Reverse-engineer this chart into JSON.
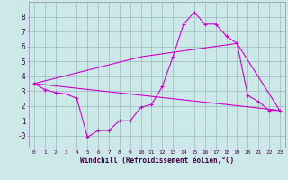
{
  "xlabel": "Windchill (Refroidissement éolien,°C)",
  "bg_color": "#cce8e8",
  "line_color": "#cc00cc",
  "grid_color": "#99bbbb",
  "spine_color": "#9999bb",
  "series1_x": [
    0,
    1,
    2,
    3,
    4,
    5,
    6,
    7,
    8,
    9,
    10,
    11,
    12,
    13,
    14,
    15,
    16,
    17,
    18,
    19,
    20,
    21,
    22,
    23
  ],
  "series1_y": [
    3.5,
    3.1,
    2.9,
    2.8,
    2.5,
    -0.1,
    0.35,
    0.35,
    1.0,
    1.0,
    1.9,
    2.1,
    3.3,
    5.3,
    7.5,
    8.3,
    7.5,
    7.5,
    6.7,
    6.2,
    2.7,
    2.3,
    1.7,
    1.7
  ],
  "line2_x": [
    0,
    23
  ],
  "line2_y": [
    3.5,
    1.7
  ],
  "line3_x": [
    0,
    10,
    19,
    23
  ],
  "line3_y": [
    3.5,
    5.3,
    6.2,
    1.7
  ],
  "ylim": [
    -0.8,
    9.0
  ],
  "xlim": [
    -0.5,
    23.5
  ],
  "yticks": [
    0,
    1,
    2,
    3,
    4,
    5,
    6,
    7,
    8
  ],
  "ytick_labels": [
    "-0",
    "1",
    "2",
    "3",
    "4",
    "5",
    "6",
    "7",
    "8"
  ],
  "xticks": [
    0,
    1,
    2,
    3,
    4,
    5,
    6,
    7,
    8,
    9,
    10,
    11,
    12,
    13,
    14,
    15,
    16,
    17,
    18,
    19,
    20,
    21,
    22,
    23
  ]
}
